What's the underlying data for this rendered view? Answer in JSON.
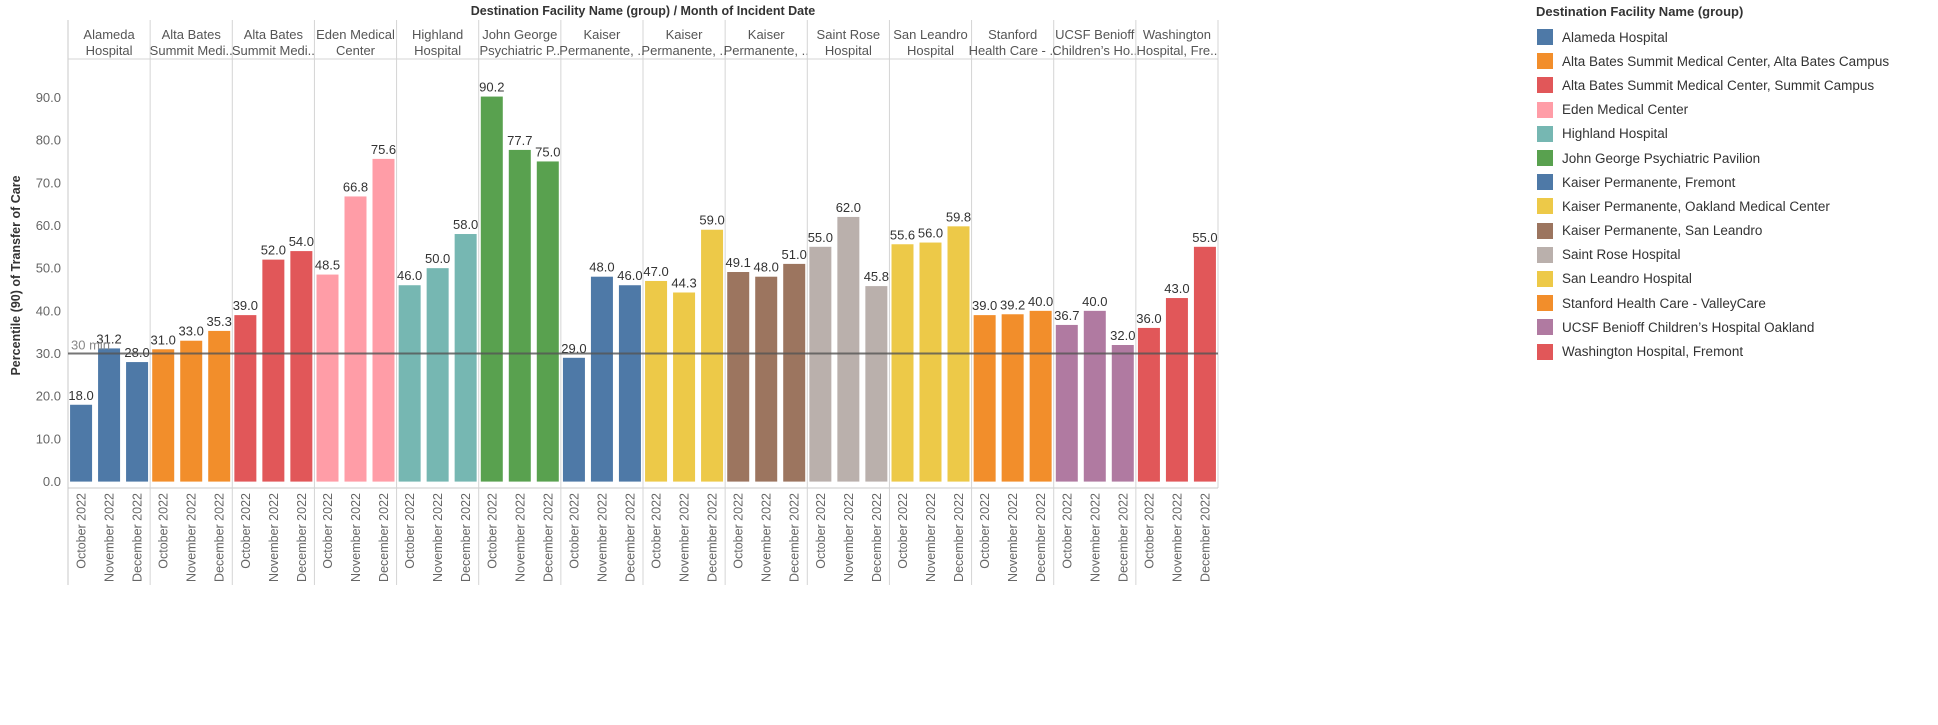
{
  "chart_data": {
    "type": "bar",
    "header_title": "Destination Facility Name (group)  /  Month of Incident Date",
    "ylabel": "Percentile (90) of Transfer of Care",
    "ylim": [
      -1.5,
      99
    ],
    "yticks": [
      0,
      10,
      20,
      30,
      40,
      50,
      60,
      70,
      80,
      90
    ],
    "ytick_labels": [
      "0.0",
      "10.0",
      "20.0",
      "30.0",
      "40.0",
      "50.0",
      "60.0",
      "70.0",
      "80.0",
      "90.0"
    ],
    "months": [
      "October 2022",
      "November 2022",
      "December 2022"
    ],
    "reference_line": {
      "value": 30,
      "label": "30 min"
    },
    "legend_title": "Destination Facility Name (group)",
    "facilities": [
      {
        "name": "Alameda Hospital",
        "header": [
          "Alameda",
          "Hospital"
        ],
        "color": "#4e79a7",
        "values": [
          18.0,
          31.2,
          28.0
        ],
        "labels": [
          "18.0",
          "31.2",
          "28.0"
        ]
      },
      {
        "name": "Alta Bates Summit Medical Center, Alta Bates Campus",
        "header": [
          "Alta Bates",
          "Summit Medi.."
        ],
        "color": "#f28e2b",
        "values": [
          31.0,
          33.0,
          35.3
        ],
        "labels": [
          "31.0",
          "33.0",
          "35.3"
        ]
      },
      {
        "name": "Alta Bates Summit Medical Center, Summit Campus",
        "header": [
          "Alta Bates",
          "Summit Medi.."
        ],
        "color": "#e15759",
        "values": [
          39.0,
          52.0,
          54.0
        ],
        "labels": [
          "39.0",
          "52.0",
          "54.0"
        ]
      },
      {
        "name": "Eden Medical Center",
        "header": [
          "Eden Medical",
          "Center"
        ],
        "color": "#ff9da7",
        "values": [
          48.5,
          66.8,
          75.6
        ],
        "labels": [
          "48.5",
          "66.8",
          "75.6"
        ]
      },
      {
        "name": "Highland Hospital",
        "header": [
          "Highland",
          "Hospital"
        ],
        "color": "#76b7b2",
        "values": [
          46.0,
          50.0,
          58.0
        ],
        "labels": [
          "46.0",
          "50.0",
          "58.0"
        ]
      },
      {
        "name": "John George Psychiatric Pavilion",
        "header": [
          "John George",
          "Psychiatric P.."
        ],
        "color": "#59a14f",
        "values": [
          90.2,
          77.7,
          75.0
        ],
        "labels": [
          "90.2",
          "77.7",
          "75.0"
        ]
      },
      {
        "name": "Kaiser Permanente, Fremont",
        "header": [
          "Kaiser",
          "Permanente, .."
        ],
        "color": "#4e79a7",
        "values": [
          29.0,
          48.0,
          46.0
        ],
        "labels": [
          "29.0",
          "48.0",
          "46.0"
        ]
      },
      {
        "name": "Kaiser Permanente, Oakland Medical Center",
        "header": [
          "Kaiser",
          "Permanente, .."
        ],
        "color": "#edc948",
        "values": [
          47.0,
          44.3,
          59.0
        ],
        "labels": [
          "47.0",
          "44.3",
          "59.0"
        ]
      },
      {
        "name": "Kaiser Permanente, San Leandro",
        "header": [
          "Kaiser",
          "Permanente, .."
        ],
        "color": "#9c755f",
        "values": [
          49.1,
          48.0,
          51.0
        ],
        "labels": [
          "49.1",
          "48.0",
          "51.0"
        ]
      },
      {
        "name": "Saint Rose Hospital",
        "header": [
          "Saint Rose",
          "Hospital"
        ],
        "color": "#bab0ac",
        "values": [
          55.0,
          62.0,
          45.8
        ],
        "labels": [
          "55.0",
          "62.0",
          "45.8"
        ]
      },
      {
        "name": "San Leandro Hospital",
        "header": [
          "San Leandro",
          "Hospital"
        ],
        "color": "#edc948",
        "values": [
          55.6,
          56.0,
          59.8
        ],
        "labels": [
          "55.6",
          "56.0",
          "59.8"
        ]
      },
      {
        "name": "Stanford Health Care - ValleyCare",
        "header": [
          "Stanford",
          "Health Care - .."
        ],
        "color": "#f28e2b",
        "values": [
          39.0,
          39.2,
          40.0
        ],
        "labels": [
          "39.0",
          "39.2",
          "40.0"
        ]
      },
      {
        "name": "UCSF Benioff Children’s Hospital Oakland",
        "header": [
          "UCSF Benioff",
          "Children’s Ho.."
        ],
        "color": "#b07aa1",
        "values": [
          36.7,
          40.0,
          32.0
        ],
        "labels": [
          "36.7",
          "40.0",
          "32.0"
        ]
      },
      {
        "name": "Washington Hospital, Fremont",
        "header": [
          "Washington",
          "Hospital, Fre.."
        ],
        "color": "#e15759",
        "values": [
          36.0,
          43.0,
          55.0
        ],
        "labels": [
          "36.0",
          "43.0",
          "55.0"
        ]
      }
    ],
    "grid": false,
    "legend_position": "right"
  }
}
